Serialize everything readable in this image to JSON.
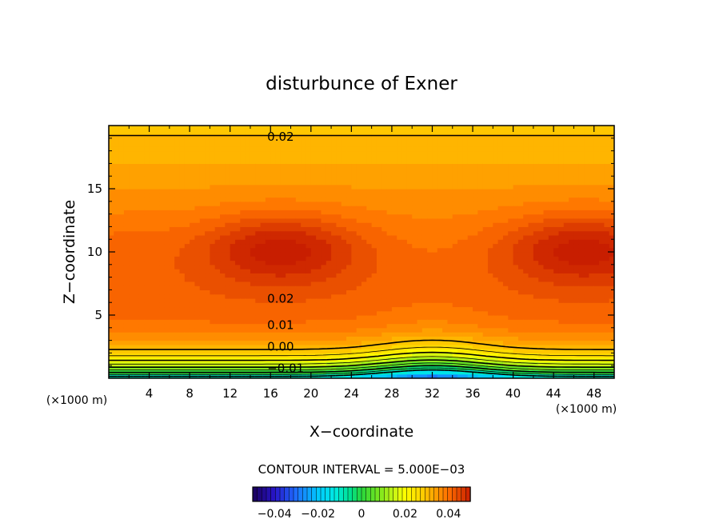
{
  "chart_data": {
    "type": "contour",
    "title": "disturbunce of Exner",
    "xlabel": "X−coordinate",
    "ylabel": "Z−coordinate",
    "x_unit_left": "(×1000 m)",
    "x_unit_right": "(×1000 m)",
    "xlim": [
      0,
      50
    ],
    "ylim": [
      0,
      20
    ],
    "x_ticks": [
      4,
      8,
      12,
      16,
      20,
      24,
      28,
      32,
      36,
      40,
      44,
      48
    ],
    "y_ticks": [
      5,
      10,
      15
    ],
    "contour_interval_text": "CONTOUR INTERVAL = 5.000E−03",
    "contour_labels": [
      {
        "text": "0.02",
        "x": 17.0,
        "z": 19.1
      },
      {
        "text": "0.02",
        "x": 17.0,
        "z": 6.3
      },
      {
        "text": "0.01",
        "x": 17.0,
        "z": 4.2
      },
      {
        "text": "0.00",
        "x": 17.0,
        "z": 2.5
      },
      {
        "text": "−0.01",
        "x": 17.5,
        "z": 0.8
      }
    ],
    "colorbar": {
      "range": [
        -0.05,
        0.05
      ],
      "tick_values": [
        -0.04,
        -0.02,
        0,
        0.02,
        0.04
      ],
      "tick_labels": [
        "−0.04",
        "−0.02",
        "0",
        "0.02",
        "0.04"
      ]
    },
    "field_description_values": {
      "max_left_center": {
        "x": 17,
        "z": 10.3,
        "value": 0.034
      },
      "max_right_center": {
        "x": 47,
        "z": 10.3,
        "value": 0.034
      },
      "min_bottom": {
        "x": 32,
        "z": 0,
        "value": -0.015
      }
    }
  }
}
